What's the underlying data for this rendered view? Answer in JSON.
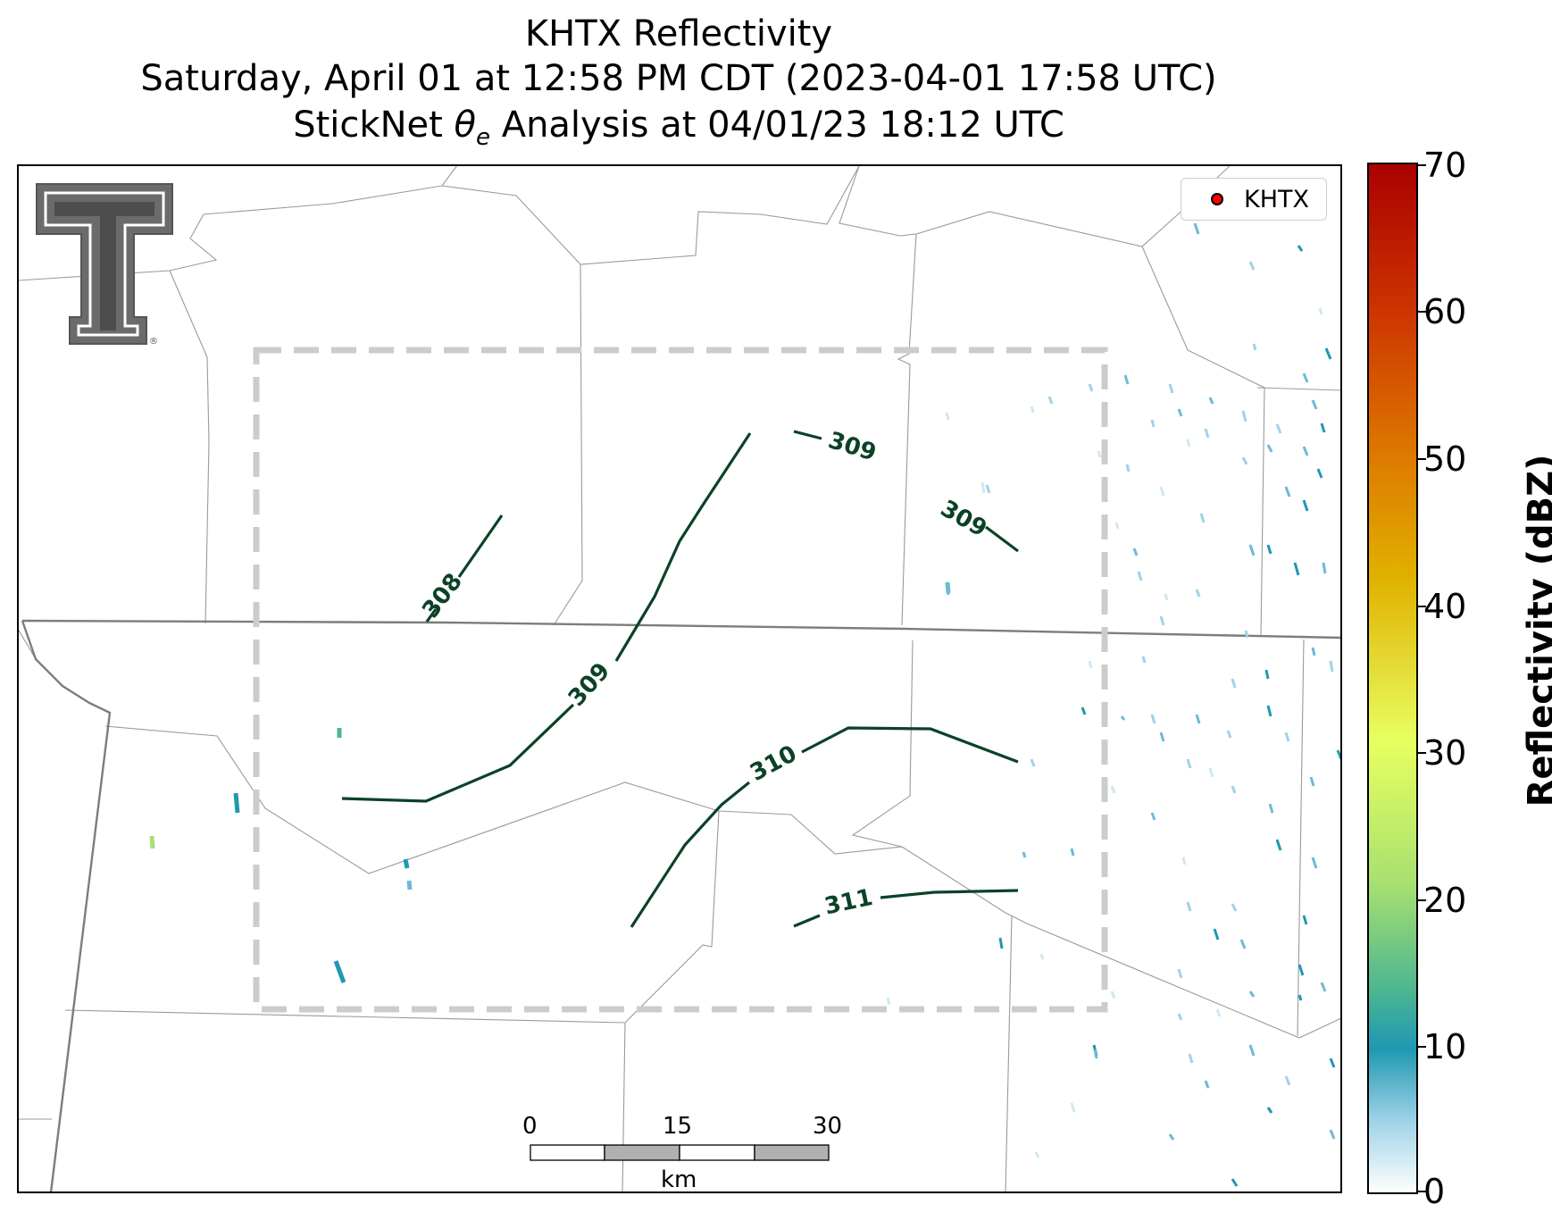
{
  "title": {
    "line1": "KHTX Reflectivity",
    "line2": "Saturday, April 01 at 12:58 PM CDT (2023-04-01 17:58 UTC)",
    "line3_prefix": "StickNet ",
    "line3_symbol": "θ",
    "line3_sub": "e",
    "line3_suffix": " Analysis at 04/01/23 18:12 UTC"
  },
  "legend": {
    "label": "KHTX",
    "marker_color": "#ff0000"
  },
  "contours": {
    "color": "#0b4226",
    "labels": [
      "308",
      "309",
      "309",
      "309",
      "310",
      "311"
    ]
  },
  "scale_bar": {
    "labels": [
      "0",
      "15",
      "30"
    ],
    "unit": "km"
  },
  "colorbar": {
    "title": "Reflectivity (dBZ)",
    "ticks": [
      "70",
      "60",
      "50",
      "40",
      "30",
      "20",
      "10",
      "0"
    ],
    "colors": [
      "#aa0000",
      "#cc3300",
      "#dd7700",
      "#e0b000",
      "#e8ff60",
      "#a7e070",
      "#4fb790",
      "#1f98b2",
      "#9fd3e6",
      "#ffffff"
    ]
  },
  "logo": {
    "text": "T",
    "mark": "®"
  },
  "analysis_box": {
    "style": "dashed",
    "color": "#cccccc"
  }
}
